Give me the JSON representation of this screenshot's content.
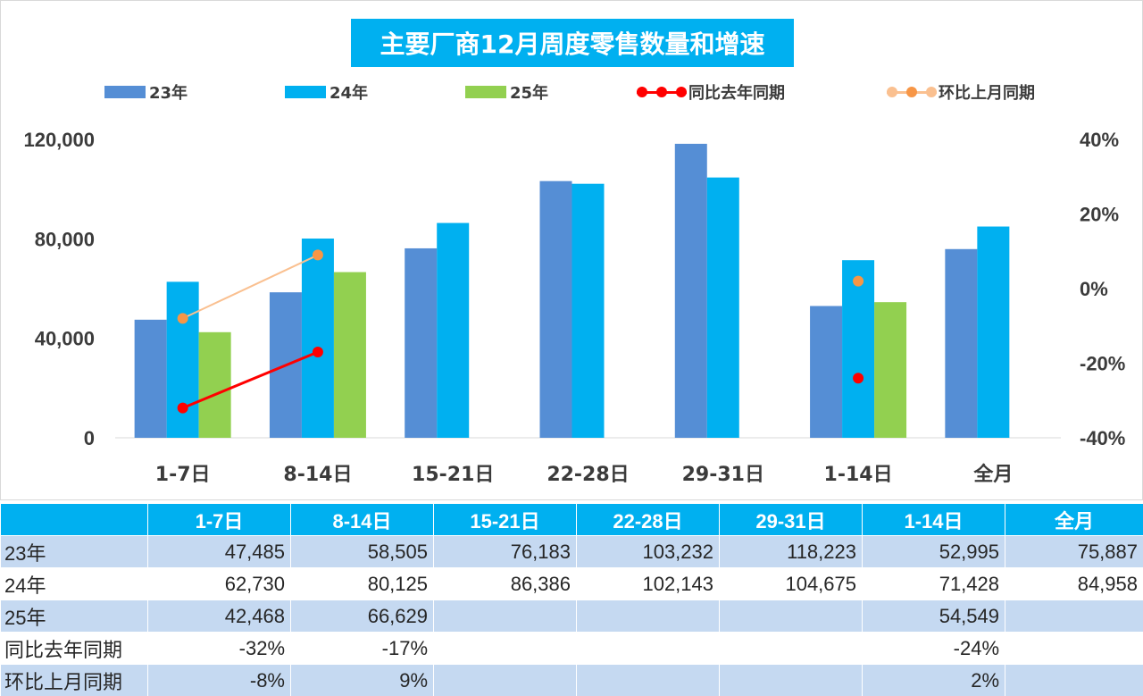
{
  "title": "主要厂商12月周度零售数量和增速",
  "colors": {
    "s23": "#558ed5",
    "s24": "#00b0f0",
    "s25": "#92d050",
    "yoy": "#ff0000",
    "mom_line": "#fac090",
    "mom_dot": "#f79646",
    "header_bg": "#00b0f0",
    "row_alt_bg": "#c5d9f1"
  },
  "legend": [
    {
      "label": "23年",
      "kind": "bar",
      "color": "#558ed5"
    },
    {
      "label": "24年",
      "kind": "bar",
      "color": "#00b0f0"
    },
    {
      "label": "25年",
      "kind": "bar",
      "color": "#92d050"
    },
    {
      "label": "同比去年同期",
      "kind": "line",
      "color": "#ff0000",
      "dot": "#ff0000"
    },
    {
      "label": "环比上月同期",
      "kind": "line",
      "color": "#fac090",
      "dot": "#f79646"
    }
  ],
  "chart_data": {
    "type": "bar",
    "title": "主要厂商12月周度零售数量和增速",
    "categories": [
      "1-7日",
      "8-14日",
      "15-21日",
      "22-28日",
      "29-31日",
      "1-14日",
      "全月"
    ],
    "series": [
      {
        "name": "23年",
        "type": "bar",
        "axis": "left",
        "values": [
          47485,
          58505,
          76183,
          103232,
          118223,
          52995,
          75887
        ]
      },
      {
        "name": "24年",
        "type": "bar",
        "axis": "left",
        "values": [
          62730,
          80125,
          86386,
          102143,
          104675,
          71428,
          84958
        ]
      },
      {
        "name": "25年",
        "type": "bar",
        "axis": "left",
        "values": [
          42468,
          66629,
          null,
          null,
          null,
          54549,
          null
        ]
      },
      {
        "name": "同比去年同期",
        "type": "line",
        "axis": "right",
        "unit": "%",
        "values": [
          -32,
          -17,
          null,
          null,
          null,
          -24,
          null
        ]
      },
      {
        "name": "环比上月同期",
        "type": "line",
        "axis": "right",
        "unit": "%",
        "values": [
          -8,
          9,
          null,
          null,
          null,
          2,
          null
        ]
      }
    ],
    "y_left": {
      "min": 0,
      "max": 120000,
      "ticks": [
        0,
        40000,
        80000,
        120000
      ],
      "tick_labels": [
        "0",
        "40,000",
        "80,000",
        "120,000"
      ]
    },
    "y_right": {
      "min": -40,
      "max": 40,
      "ticks": [
        -40,
        -20,
        0,
        20,
        40
      ],
      "tick_labels": [
        "-40%",
        "-20%",
        "0%",
        "20%",
        "40%"
      ]
    },
    "grid": false,
    "legend_position": "top"
  },
  "table": {
    "headers": [
      "",
      "1-7日",
      "8-14日",
      "15-21日",
      "22-28日",
      "29-31日",
      "1-14日",
      "全月"
    ],
    "rows": [
      {
        "label": "23年",
        "cells": [
          "47,485",
          "58,505",
          "76,183",
          "103,232",
          "118,223",
          "52,995",
          "75,887"
        ]
      },
      {
        "label": "24年",
        "cells": [
          "62,730",
          "80,125",
          "86,386",
          "102,143",
          "104,675",
          "71,428",
          "84,958"
        ]
      },
      {
        "label": "25年",
        "cells": [
          "42,468",
          "66,629",
          "",
          "",
          "",
          "54,549",
          ""
        ]
      },
      {
        "label": "同比去年同期",
        "cells": [
          "-32%",
          "-17%",
          "",
          "",
          "",
          "-24%",
          ""
        ]
      },
      {
        "label": "环比上月同期",
        "cells": [
          "-8%",
          "9%",
          "",
          "",
          "",
          "2%",
          ""
        ]
      }
    ]
  }
}
